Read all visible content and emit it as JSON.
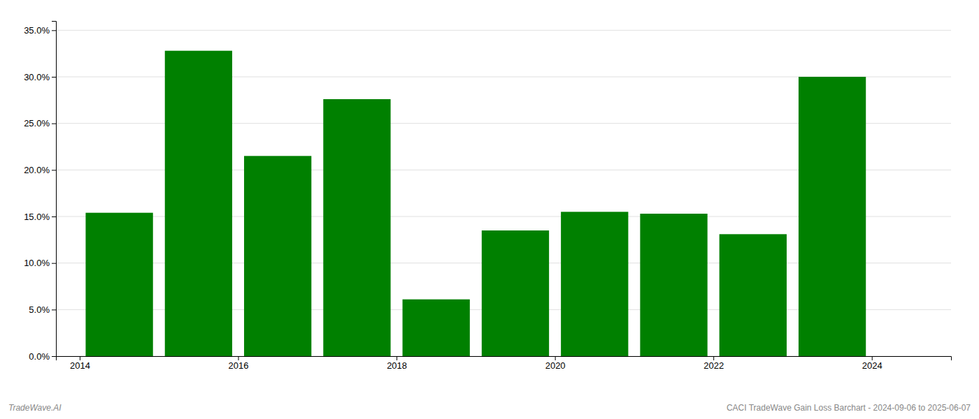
{
  "chart_data": {
    "type": "bar",
    "x": [
      2014,
      2015,
      2016,
      2017,
      2018,
      2019,
      2020,
      2021,
      2022,
      2023
    ],
    "values": [
      0.154,
      0.328,
      0.215,
      0.276,
      0.061,
      0.135,
      0.155,
      0.153,
      0.131,
      0.3
    ],
    "color": "#008000",
    "xlim": [
      2013.2,
      2024.5
    ],
    "xticks": [
      {
        "value": 2013.5,
        "label": "2014"
      },
      {
        "value": 2015.5,
        "label": "2016"
      },
      {
        "value": 2017.5,
        "label": "2018"
      },
      {
        "value": 2019.5,
        "label": "2020"
      },
      {
        "value": 2021.5,
        "label": "2022"
      },
      {
        "value": 2023.5,
        "label": "2024"
      }
    ],
    "ylim": [
      0,
      0.36
    ],
    "yticks": [
      {
        "value": 0.0,
        "label": "0.0%"
      },
      {
        "value": 0.05,
        "label": "5.0%"
      },
      {
        "value": 0.1,
        "label": "10.0%"
      },
      {
        "value": 0.15,
        "label": "15.0%"
      },
      {
        "value": 0.2,
        "label": "20.0%"
      },
      {
        "value": 0.25,
        "label": "25.0%"
      },
      {
        "value": 0.3,
        "label": "30.0%"
      },
      {
        "value": 0.35,
        "label": "35.0%"
      }
    ],
    "grid": true,
    "annotations": [
      "TradeWave.AI",
      "CACI TradeWave Gain Loss Barchart - 2024-09-06 to 2025-06-07"
    ]
  }
}
